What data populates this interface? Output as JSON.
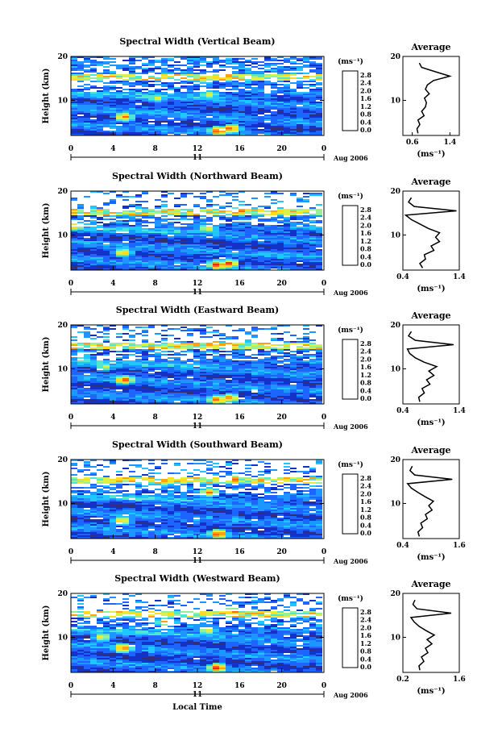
{
  "figure": {
    "shared_xlabel": "Local Time",
    "day_label": "11",
    "month_label": "Aug 2006",
    "ylabel": "Height (km)",
    "colorbar_unit": "(ms⁻¹)",
    "profile_title": "Average",
    "profile_unit": "(ms⁻¹)"
  },
  "colorbar": {
    "ticks": [
      "2.8",
      "2.4",
      "2.0",
      "1.6",
      "1.2",
      "0.8",
      "0.4",
      "0.0"
    ],
    "colors": [
      "#30307a",
      "#1432c8",
      "#1e64ff",
      "#1e96ff",
      "#1ec8ff",
      "#50e6d2",
      "#96f096",
      "#dcf046",
      "#ffdc1e",
      "#ffa014",
      "#ff6414",
      "#ff1e1e",
      "#e60014"
    ]
  },
  "panels": [
    {
      "title": "Spectral Width (Vertical Beam)",
      "xticks": [
        "0",
        "4",
        "8",
        "12",
        "16",
        "20",
        "0"
      ],
      "yticks": [
        "20",
        "10"
      ],
      "profile_xticks": [
        "0.6",
        "1.4"
      ],
      "profile_yticks": [
        "20",
        "10"
      ]
    },
    {
      "title": "Spectral Width (Northward Beam)",
      "xticks": [
        "0",
        "4",
        "8",
        "12",
        "16",
        "20",
        "0"
      ],
      "yticks": [
        "20",
        "10"
      ],
      "profile_xticks": [
        "0.4",
        "1.4"
      ],
      "profile_yticks": [
        "20",
        "10"
      ]
    },
    {
      "title": "Spectral Width (Eastward Beam)",
      "xticks": [
        "0",
        "4",
        "8",
        "12",
        "16",
        "20",
        "0"
      ],
      "yticks": [
        "20",
        "10"
      ],
      "profile_xticks": [
        "0.4",
        "1.4"
      ],
      "profile_yticks": [
        "20",
        "10"
      ]
    },
    {
      "title": "Spectral Width (Southward Beam)",
      "xticks": [
        "0",
        "4",
        "8",
        "12",
        "16",
        "20",
        "0"
      ],
      "yticks": [
        "20",
        "10"
      ],
      "profile_xticks": [
        "0.4",
        "1.6"
      ],
      "profile_yticks": [
        "20",
        "10"
      ]
    },
    {
      "title": "Spectral Width (Westward Beam)",
      "xticks": [
        "0",
        "4",
        "8",
        "12",
        "16",
        "20",
        "0"
      ],
      "yticks": [
        "20",
        "10"
      ],
      "profile_xticks": [
        "0.2",
        "1.6"
      ],
      "profile_yticks": [
        "20",
        "10"
      ]
    }
  ],
  "chart_data": [
    {
      "type": "heatmap",
      "title": "Spectral Width (Vertical Beam)",
      "xlabel": "Local Time",
      "ylabel": "Height (km)",
      "xlim": [
        0,
        24
      ],
      "ylim": [
        2,
        20
      ],
      "colorbar_range": [
        0.0,
        2.8
      ],
      "features": [
        {
          "t": 14.1,
          "h": 3.0,
          "w": 2.8
        },
        {
          "t": 15.3,
          "h": 3.5,
          "w": 2.6
        },
        {
          "t": 5.1,
          "h": 6.2,
          "w": 2.4
        },
        {
          "t": 14.8,
          "h": 15.4,
          "w": 2.6
        },
        {
          "t": 12.5,
          "h": 15.0,
          "w": 2.2
        },
        {
          "t": 8.2,
          "h": 10.5,
          "w": 1.8
        },
        {
          "t": 13.2,
          "h": 11.2,
          "w": 1.9
        }
      ],
      "average_profile": {
        "xlim": [
          0.4,
          1.6
        ],
        "heights": [
          2.5,
          3.5,
          4.5,
          5.5,
          6.5,
          7.5,
          8.5,
          9.5,
          10.5,
          11.5,
          12.5,
          13.5,
          14.5,
          15.5,
          16.5,
          17.5,
          18.5
        ],
        "values": [
          0.72,
          0.7,
          0.76,
          0.72,
          0.85,
          0.8,
          0.88,
          0.9,
          0.86,
          0.96,
          0.88,
          0.92,
          1.05,
          1.4,
          1.1,
          0.8,
          0.75
        ]
      }
    },
    {
      "type": "heatmap",
      "title": "Spectral Width (Northward Beam)",
      "xlabel": "Local Time",
      "ylabel": "Height (km)",
      "xlim": [
        0,
        24
      ],
      "ylim": [
        2,
        20
      ],
      "colorbar_range": [
        0.0,
        2.8
      ],
      "features": [
        {
          "t": 14.0,
          "h": 3.2,
          "w": 2.8
        },
        {
          "t": 15.1,
          "h": 3.5,
          "w": 2.6
        },
        {
          "t": 5.0,
          "h": 6.0,
          "w": 2.2
        },
        {
          "t": 0.4,
          "h": 12.0,
          "w": 2.2
        },
        {
          "t": 13.0,
          "h": 11.5,
          "w": 2.0
        },
        {
          "t": 16.2,
          "h": 15.5,
          "w": 2.5
        }
      ],
      "average_profile": {
        "xlim": [
          0.4,
          1.4
        ],
        "heights": [
          2.5,
          3.5,
          4.5,
          5.5,
          6.5,
          7.5,
          8.5,
          9.5,
          10.5,
          11.5,
          12.5,
          13.5,
          14.5,
          15.5,
          16.5,
          17.5,
          18.5
        ],
        "values": [
          0.75,
          0.7,
          0.8,
          0.78,
          0.95,
          0.9,
          1.05,
          0.98,
          1.05,
          0.85,
          0.7,
          0.55,
          0.45,
          1.35,
          0.6,
          0.5,
          0.55
        ]
      }
    },
    {
      "type": "heatmap",
      "title": "Spectral Width (Eastward Beam)",
      "xlabel": "Local Time",
      "ylabel": "Height (km)",
      "xlim": [
        0,
        24
      ],
      "ylim": [
        2,
        20
      ],
      "colorbar_range": [
        0.0,
        2.8
      ],
      "features": [
        {
          "t": 14.0,
          "h": 3.0,
          "w": 2.6
        },
        {
          "t": 15.2,
          "h": 3.4,
          "w": 2.4
        },
        {
          "t": 5.1,
          "h": 7.5,
          "w": 2.6
        },
        {
          "t": 3.2,
          "h": 10.5,
          "w": 1.8
        },
        {
          "t": 13.5,
          "h": 16.0,
          "w": 2.6
        },
        {
          "t": 1.2,
          "h": 12.0,
          "w": 1.6
        }
      ],
      "average_profile": {
        "xlim": [
          0.4,
          1.4
        ],
        "heights": [
          2.5,
          3.5,
          4.5,
          5.5,
          6.5,
          7.5,
          8.5,
          9.5,
          10.5,
          11.5,
          12.5,
          13.5,
          14.5,
          15.5,
          16.5,
          17.5,
          18.5
        ],
        "values": [
          0.7,
          0.68,
          0.78,
          0.74,
          0.88,
          0.82,
          0.95,
          0.86,
          1.0,
          0.78,
          0.62,
          0.52,
          0.48,
          1.3,
          0.62,
          0.5,
          0.55
        ]
      }
    },
    {
      "type": "heatmap",
      "title": "Spectral Width (Southward Beam)",
      "xlabel": "Local Time",
      "ylabel": "Height (km)",
      "xlim": [
        0,
        24
      ],
      "ylim": [
        2,
        20
      ],
      "colorbar_range": [
        0.0,
        2.8
      ],
      "features": [
        {
          "t": 14.1,
          "h": 3.0,
          "w": 2.8
        },
        {
          "t": 4.9,
          "h": 6.0,
          "w": 2.2
        },
        {
          "t": 13.2,
          "h": 12.5,
          "w": 2.4
        },
        {
          "t": 15.5,
          "h": 15.4,
          "w": 2.6
        },
        {
          "t": 9.0,
          "h": 15.0,
          "w": 2.2
        }
      ],
      "average_profile": {
        "xlim": [
          0.4,
          1.6
        ],
        "heights": [
          2.5,
          3.5,
          4.5,
          5.5,
          6.5,
          7.5,
          8.5,
          9.5,
          10.5,
          11.5,
          12.5,
          13.5,
          14.5,
          15.5,
          16.5,
          17.5,
          18.5
        ],
        "values": [
          0.75,
          0.72,
          0.82,
          0.78,
          0.92,
          0.88,
          1.02,
          0.95,
          1.05,
          0.88,
          0.72,
          0.58,
          0.5,
          1.45,
          0.65,
          0.55,
          0.6
        ]
      }
    },
    {
      "type": "heatmap",
      "title": "Spectral Width (Westward Beam)",
      "xlabel": "Local Time",
      "ylabel": "Height (km)",
      "xlim": [
        0,
        24
      ],
      "ylim": [
        2,
        20
      ],
      "colorbar_range": [
        0.0,
        2.8
      ],
      "features": [
        {
          "t": 14.0,
          "h": 3.0,
          "w": 2.8
        },
        {
          "t": 5.0,
          "h": 7.5,
          "w": 2.6
        },
        {
          "t": 3.0,
          "h": 10.0,
          "w": 2.0
        },
        {
          "t": 13.0,
          "h": 11.5,
          "w": 2.0
        },
        {
          "t": 15.5,
          "h": 15.8,
          "w": 2.6
        },
        {
          "t": 9.0,
          "h": 13.5,
          "w": 2.2
        }
      ],
      "average_profile": {
        "xlim": [
          0.2,
          1.6
        ],
        "heights": [
          2.5,
          3.5,
          4.5,
          5.5,
          6.5,
          7.5,
          8.5,
          9.5,
          10.5,
          11.5,
          12.5,
          13.5,
          14.5,
          15.5,
          16.5,
          17.5,
          18.5
        ],
        "values": [
          0.62,
          0.6,
          0.72,
          0.66,
          0.82,
          0.76,
          0.92,
          0.8,
          0.98,
          0.78,
          0.6,
          0.48,
          0.4,
          1.4,
          0.55,
          0.45,
          0.5
        ]
      }
    }
  ]
}
